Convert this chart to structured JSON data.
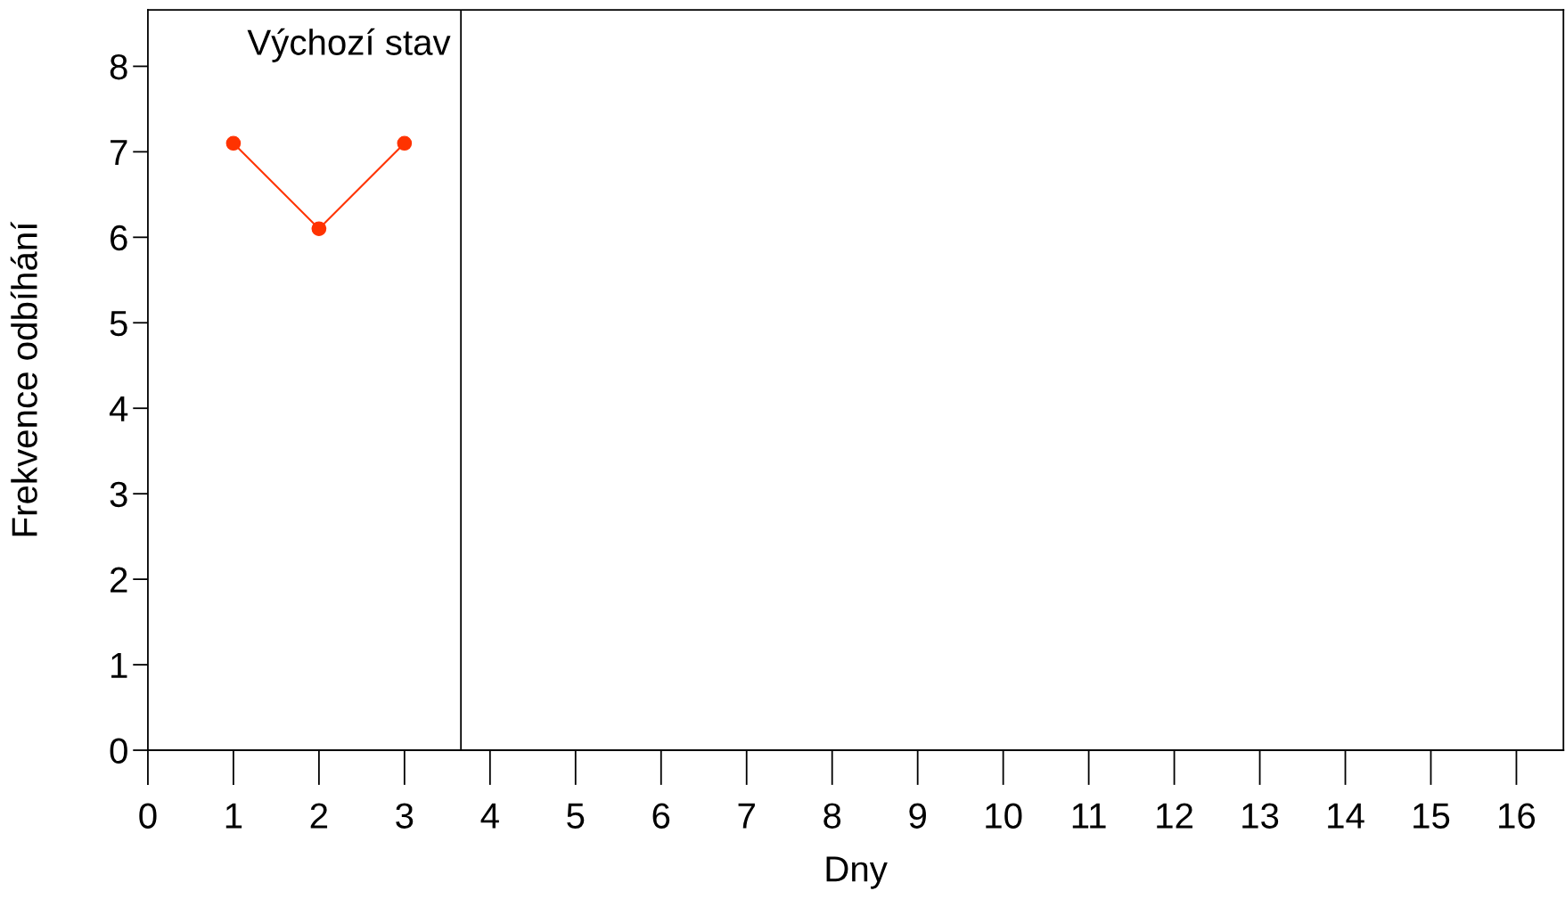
{
  "chart_data": {
    "type": "line",
    "xlabel": "Dny",
    "ylabel": "Frekvence odbíhání",
    "x": [
      1,
      2,
      3
    ],
    "series": [
      {
        "color": "#ff3300",
        "values": [
          7.1,
          6.1,
          7.1
        ]
      }
    ],
    "marker": "circle",
    "line_style": "solid",
    "grid": false,
    "legend": false,
    "xlim": [
      0,
      16.55
    ],
    "xticks": [
      0,
      1,
      2,
      3,
      4,
      5,
      6,
      7,
      8,
      9,
      10,
      11,
      12,
      13,
      14,
      15,
      16
    ],
    "ylim": [
      0,
      8.66
    ],
    "yticks": [
      0,
      1,
      2,
      3,
      4,
      5,
      6,
      7,
      8
    ],
    "ref_lines": [
      {
        "axis": "x",
        "value": 3.66,
        "label": "Výchozí stav",
        "color": "#000000"
      }
    ]
  }
}
